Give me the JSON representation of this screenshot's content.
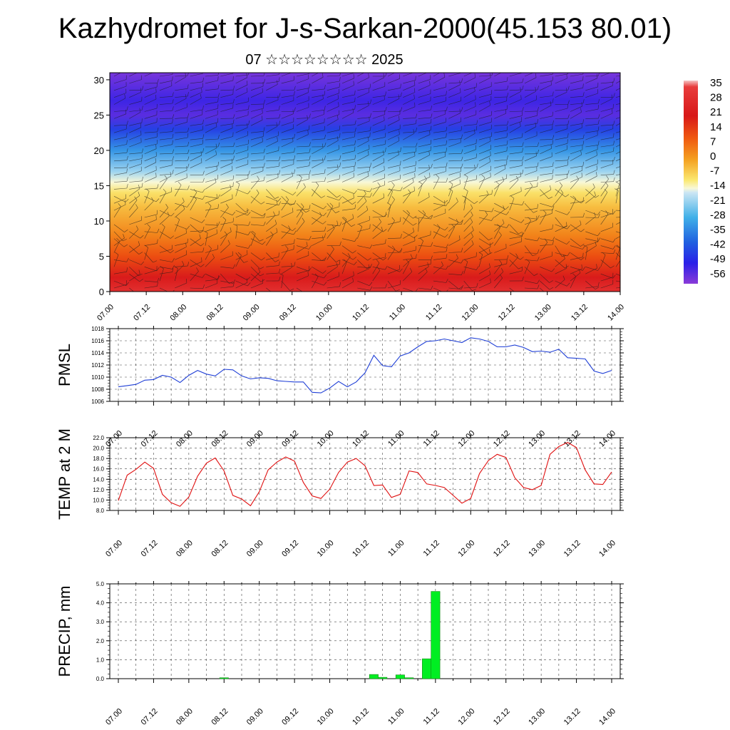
{
  "header": {
    "title": "Kazhydromet for J-s-Sarkan-2000(45.153 80.01)",
    "subtitle": "07 ☆☆☆☆☆☆☆☆ 2025"
  },
  "colors": {
    "pmsl_line": "#1f3fd6",
    "temp_line": "#e01010",
    "precip_bar": "#00ee22",
    "frame": "#000000",
    "grid": "#444444"
  },
  "time_labels": [
    "07.00",
    "07.12",
    "08.00",
    "08.12",
    "09.00",
    "09.12",
    "10.00",
    "10.12",
    "11.00",
    "11.12",
    "12.00",
    "12.12",
    "13.00",
    "13.12",
    "14.00"
  ],
  "chart_data": [
    {
      "id": "upper_air",
      "type": "heatmap",
      "title": "",
      "ylabel": "",
      "y_ticks": [
        0,
        5,
        10,
        15,
        20,
        25,
        30
      ],
      "ylim": [
        0,
        31
      ],
      "colorbar": {
        "labels": [
          "35",
          "28",
          "21",
          "14",
          "7",
          "0",
          "-7",
          "-14",
          "-21",
          "-28",
          "-35",
          "-42",
          "-49",
          "-56"
        ],
        "range": [
          -60,
          38
        ],
        "stops": [
          {
            "v": 38,
            "c": "#f5c4c4"
          },
          {
            "v": 35,
            "c": "#e83c3c"
          },
          {
            "v": 21,
            "c": "#d81818"
          },
          {
            "v": 10,
            "c": "#f05a10"
          },
          {
            "v": 0,
            "c": "#f4a020"
          },
          {
            "v": -10,
            "c": "#fbe870"
          },
          {
            "v": -14,
            "c": "#f8f8d8"
          },
          {
            "v": -16,
            "c": "#cce6f4"
          },
          {
            "v": -28,
            "c": "#40b0e8"
          },
          {
            "v": -40,
            "c": "#2060e0"
          },
          {
            "v": -50,
            "c": "#2a20e8"
          },
          {
            "v": -60,
            "c": "#8a3ad8"
          }
        ]
      },
      "temperature_profile": [
        {
          "level": 0,
          "value": 30
        },
        {
          "level": 2,
          "value": 22
        },
        {
          "level": 5,
          "value": 12
        },
        {
          "level": 8,
          "value": 4
        },
        {
          "level": 12,
          "value": -4
        },
        {
          "level": 14,
          "value": -9
        },
        {
          "level": 15.5,
          "value": -14
        },
        {
          "level": 17,
          "value": -20
        },
        {
          "level": 20,
          "value": -32
        },
        {
          "level": 23,
          "value": -45
        },
        {
          "level": 25,
          "value": -55
        },
        {
          "level": 27,
          "value": -52
        },
        {
          "level": 31,
          "value": -58
        }
      ]
    },
    {
      "id": "pmsl",
      "type": "line",
      "ylabel": "PMSL",
      "ylim": [
        1006,
        1018
      ],
      "y_ticks": [
        "1006",
        "1008",
        "1010",
        "1012",
        "1014",
        "1016",
        "1018"
      ],
      "x_hours": [
        0,
        3,
        6,
        9,
        12,
        15,
        18,
        21,
        24,
        27,
        30,
        33,
        36,
        39,
        42,
        45,
        48,
        51,
        54,
        57,
        60,
        63,
        66,
        69,
        72,
        75,
        78,
        81,
        84,
        87,
        90,
        93,
        96,
        99,
        102,
        105,
        108,
        111,
        114,
        117,
        120,
        123,
        126,
        129,
        132,
        135,
        138,
        141,
        144,
        147,
        150,
        153,
        156,
        159,
        162,
        165,
        168
      ],
      "values": [
        1008.4,
        1008.6,
        1008.8,
        1009.5,
        1009.6,
        1010.3,
        1010.0,
        1009.1,
        1010.3,
        1011.1,
        1010.5,
        1010.2,
        1011.3,
        1011.2,
        1010.2,
        1009.7,
        1009.9,
        1009.8,
        1009.4,
        1009.3,
        1009.2,
        1009.2,
        1007.5,
        1007.4,
        1008.2,
        1009.3,
        1008.4,
        1009.2,
        1010.7,
        1013.6,
        1011.9,
        1011.7,
        1013.5,
        1014.0,
        1015.0,
        1015.9,
        1016.0,
        1016.3,
        1016.0,
        1015.7,
        1016.5,
        1016.3,
        1015.9,
        1015.0,
        1015.0,
        1015.3,
        1014.9,
        1014.2,
        1014.3,
        1014.1,
        1014.6,
        1013.2,
        1013.1,
        1013.0,
        1011.0,
        1010.6,
        1011.1
      ],
      "series": [
        {
          "name": "",
          "color": "#1f3fd6"
        }
      ]
    },
    {
      "id": "temp2m",
      "type": "line",
      "ylabel": "TEMP at 2 M",
      "ylim": [
        8,
        22
      ],
      "y_ticks": [
        "8.0",
        "10.0",
        "12.0",
        "14.0",
        "16.0",
        "18.0",
        "20.0",
        "22.0"
      ],
      "x_hours": [
        0,
        3,
        6,
        9,
        12,
        15,
        18,
        21,
        24,
        27,
        30,
        33,
        36,
        39,
        42,
        45,
        48,
        51,
        54,
        57,
        60,
        63,
        66,
        69,
        72,
        75,
        78,
        81,
        84,
        87,
        90,
        93,
        96,
        99,
        102,
        105,
        108,
        111,
        114,
        117,
        120,
        123,
        126,
        129,
        132,
        135,
        138,
        141,
        144,
        147,
        150,
        153,
        156,
        159,
        162,
        165,
        168
      ],
      "values": [
        9.9,
        14.8,
        15.9,
        17.3,
        16.1,
        11.1,
        9.5,
        8.8,
        10.6,
        14.6,
        17.1,
        18.1,
        15.6,
        10.9,
        10.2,
        8.9,
        11.6,
        15.8,
        17.3,
        18.3,
        17.5,
        13.4,
        10.8,
        10.3,
        12.1,
        15.3,
        17.3,
        18.0,
        16.6,
        12.8,
        12.9,
        10.5,
        11.1,
        15.6,
        15.3,
        13.1,
        12.8,
        12.4,
        10.9,
        9.4,
        10.3,
        15.1,
        17.6,
        18.8,
        18.2,
        14.3,
        12.4,
        12.0,
        12.8,
        18.8,
        20.3,
        21.1,
        20.1,
        15.8,
        13.1,
        13.0,
        15.4
      ],
      "series": [
        {
          "name": "",
          "color": "#e01010"
        }
      ]
    },
    {
      "id": "precip",
      "type": "bar",
      "ylabel": "PRECIP, mm",
      "ylim": [
        0,
        5
      ],
      "y_ticks": [
        "0.0",
        "1.0",
        "2.0",
        "3.0",
        "4.0",
        "5.0"
      ],
      "bar_hours": [
        36,
        87,
        90,
        96,
        99,
        105,
        108
      ],
      "values": [
        0.05,
        0.22,
        0.07,
        0.2,
        0.05,
        1.05,
        4.6
      ],
      "series": [
        {
          "name": "",
          "color": "#00ee22"
        }
      ]
    }
  ]
}
